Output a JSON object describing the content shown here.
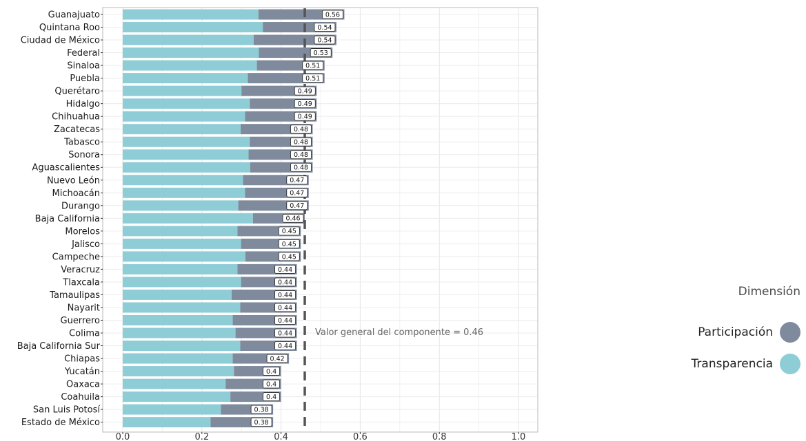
{
  "chart_data": {
    "type": "bar",
    "orientation": "horizontal",
    "stacked": true,
    "categories": [
      "Guanajuato",
      "Quintana Roo",
      "Ciudad de México",
      "Federal",
      "Sinaloa",
      "Puebla",
      "Querétaro",
      "Hidalgo",
      "Chihuahua",
      "Zacatecas",
      "Tabasco",
      "Sonora",
      "Aguascalientes",
      "Nuevo León",
      "Michoacán",
      "Durango",
      "Baja California",
      "Morelos",
      "Jalisco",
      "Campeche",
      "Veracruz",
      "Tlaxcala",
      "Tamaulipas",
      "Nayarit",
      "Guerrero",
      "Colima",
      "Baja California Sur",
      "Chiapas",
      "Yucatán",
      "Oaxaca",
      "Coahuila",
      "San Luis Potosí",
      "Estado de México"
    ],
    "series": [
      {
        "name": "Transparencia",
        "color": "#8ecdd6",
        "values": [
          0.343,
          0.354,
          0.331,
          0.344,
          0.339,
          0.316,
          0.3,
          0.321,
          0.309,
          0.298,
          0.321,
          0.318,
          0.322,
          0.304,
          0.309,
          0.292,
          0.329,
          0.29,
          0.299,
          0.31,
          0.29,
          0.299,
          0.275,
          0.297,
          0.278,
          0.285,
          0.297,
          0.278,
          0.281,
          0.26,
          0.272,
          0.248,
          0.222
        ]
      },
      {
        "name": "Participación",
        "color": "#7f8a9c",
        "values": [
          0.217,
          0.186,
          0.209,
          0.186,
          0.171,
          0.194,
          0.19,
          0.169,
          0.181,
          0.182,
          0.159,
          0.162,
          0.158,
          0.166,
          0.161,
          0.178,
          0.131,
          0.16,
          0.151,
          0.14,
          0.15,
          0.141,
          0.165,
          0.143,
          0.162,
          0.155,
          0.143,
          0.142,
          0.119,
          0.14,
          0.128,
          0.132,
          0.158
        ]
      }
    ],
    "totals": [
      "0.56",
      "0.54",
      "0.54",
      "0.53",
      "0.51",
      "0.51",
      "0.49",
      "0.49",
      "0.49",
      "0.48",
      "0.48",
      "0.48",
      "0.48",
      "0.47",
      "0.47",
      "0.47",
      "0.46",
      "0.45",
      "0.45",
      "0.45",
      "0.44",
      "0.44",
      "0.44",
      "0.44",
      "0.44",
      "0.44",
      "0.44",
      "0.42",
      "0.4",
      "0.4",
      "0.4",
      "0.38",
      "0.38"
    ],
    "reference_line": {
      "value": 0.46,
      "label": "Valor general del componente = 0.46",
      "style": "dashed"
    },
    "xlim": [
      0,
      1.0
    ],
    "xticks": [
      "0.0",
      "0.2",
      "0.4",
      "0.6",
      "0.8",
      "1.0"
    ],
    "grid": true,
    "legend": {
      "title": "Dimensión",
      "position": "right",
      "items": [
        {
          "label": "Participación",
          "color": "#7f8a9c"
        },
        {
          "label": "Transparencia",
          "color": "#8ecdd6"
        }
      ]
    }
  }
}
